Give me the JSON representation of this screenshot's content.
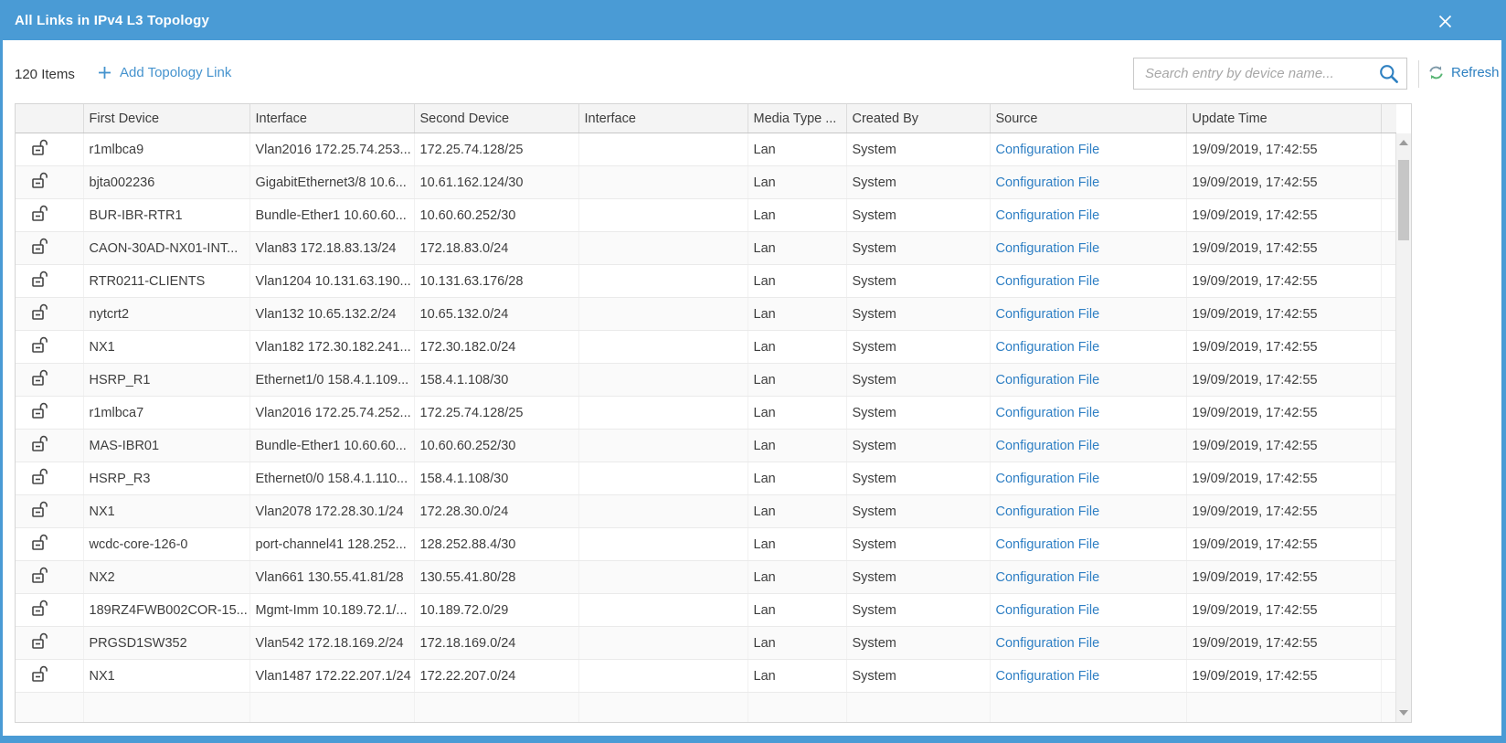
{
  "modal": {
    "title": "All Links in IPv4 L3 Topology"
  },
  "toolbar": {
    "items_count": "120 Items",
    "add_link_label": "Add Topology Link",
    "search_placeholder": "Search entry by device name...",
    "refresh_label": "Refresh"
  },
  "colors": {
    "titlebar_blue": "#4a9bd5",
    "link_blue": "#2e7fc4",
    "add_link_blue": "#4593ce",
    "refresh_green": "#58b574",
    "refresh_gray_blue": "#7e99a8"
  },
  "icons": {
    "close": "close-icon",
    "plus": "plus-icon",
    "search": "search-icon",
    "refresh": "refresh-icon",
    "row_lock": "unlock-icon"
  },
  "table": {
    "columns": [
      "",
      "First Device",
      "Interface",
      "Second Device",
      "Interface",
      "Media Type ...",
      "Created By",
      "Source",
      "Update Time",
      ""
    ],
    "rows": [
      {
        "first_device": "r1mlbca9",
        "interface1": "Vlan2016 172.25.74.253...",
        "second_device": "172.25.74.128/25",
        "interface2": "",
        "media_type": "Lan",
        "created_by": "System",
        "source": "Configuration File",
        "update_time": "19/09/2019, 17:42:55"
      },
      {
        "first_device": "bjta002236",
        "interface1": "GigabitEthernet3/8 10.6...",
        "second_device": "10.61.162.124/30",
        "interface2": "",
        "media_type": "Lan",
        "created_by": "System",
        "source": "Configuration File",
        "update_time": "19/09/2019, 17:42:55"
      },
      {
        "first_device": "BUR-IBR-RTR1",
        "interface1": "Bundle-Ether1 10.60.60...",
        "second_device": "10.60.60.252/30",
        "interface2": "",
        "media_type": "Lan",
        "created_by": "System",
        "source": "Configuration File",
        "update_time": "19/09/2019, 17:42:55"
      },
      {
        "first_device": "CAON-30AD-NX01-INT...",
        "interface1": "Vlan83 172.18.83.13/24",
        "second_device": "172.18.83.0/24",
        "interface2": "",
        "media_type": "Lan",
        "created_by": "System",
        "source": "Configuration File",
        "update_time": "19/09/2019, 17:42:55"
      },
      {
        "first_device": "RTR0211-CLIENTS",
        "interface1": "Vlan1204 10.131.63.190...",
        "second_device": "10.131.63.176/28",
        "interface2": "",
        "media_type": "Lan",
        "created_by": "System",
        "source": "Configuration File",
        "update_time": "19/09/2019, 17:42:55"
      },
      {
        "first_device": "nytcrt2",
        "interface1": "Vlan132 10.65.132.2/24",
        "second_device": "10.65.132.0/24",
        "interface2": "",
        "media_type": "Lan",
        "created_by": "System",
        "source": "Configuration File",
        "update_time": "19/09/2019, 17:42:55"
      },
      {
        "first_device": "NX1",
        "interface1": "Vlan182 172.30.182.241...",
        "second_device": "172.30.182.0/24",
        "interface2": "",
        "media_type": "Lan",
        "created_by": "System",
        "source": "Configuration File",
        "update_time": "19/09/2019, 17:42:55"
      },
      {
        "first_device": "HSRP_R1",
        "interface1": "Ethernet1/0 158.4.1.109...",
        "second_device": "158.4.1.108/30",
        "interface2": "",
        "media_type": "Lan",
        "created_by": "System",
        "source": "Configuration File",
        "update_time": "19/09/2019, 17:42:55"
      },
      {
        "first_device": "r1mlbca7",
        "interface1": "Vlan2016 172.25.74.252...",
        "second_device": "172.25.74.128/25",
        "interface2": "",
        "media_type": "Lan",
        "created_by": "System",
        "source": "Configuration File",
        "update_time": "19/09/2019, 17:42:55"
      },
      {
        "first_device": "MAS-IBR01",
        "interface1": "Bundle-Ether1 10.60.60...",
        "second_device": "10.60.60.252/30",
        "interface2": "",
        "media_type": "Lan",
        "created_by": "System",
        "source": "Configuration File",
        "update_time": "19/09/2019, 17:42:55"
      },
      {
        "first_device": "HSRP_R3",
        "interface1": "Ethernet0/0 158.4.1.110...",
        "second_device": "158.4.1.108/30",
        "interface2": "",
        "media_type": "Lan",
        "created_by": "System",
        "source": "Configuration File",
        "update_time": "19/09/2019, 17:42:55"
      },
      {
        "first_device": "NX1",
        "interface1": "Vlan2078 172.28.30.1/24",
        "second_device": "172.28.30.0/24",
        "interface2": "",
        "media_type": "Lan",
        "created_by": "System",
        "source": "Configuration File",
        "update_time": "19/09/2019, 17:42:55"
      },
      {
        "first_device": "wcdc-core-126-0",
        "interface1": "port-channel41 128.252...",
        "second_device": "128.252.88.4/30",
        "interface2": "",
        "media_type": "Lan",
        "created_by": "System",
        "source": "Configuration File",
        "update_time": "19/09/2019, 17:42:55"
      },
      {
        "first_device": "NX2",
        "interface1": "Vlan661 130.55.41.81/28",
        "second_device": "130.55.41.80/28",
        "interface2": "",
        "media_type": "Lan",
        "created_by": "System",
        "source": "Configuration File",
        "update_time": "19/09/2019, 17:42:55"
      },
      {
        "first_device": "189RZ4FWB002COR-15...",
        "interface1": "Mgmt-Imm 10.189.72.1/...",
        "second_device": "10.189.72.0/29",
        "interface2": "",
        "media_type": "Lan",
        "created_by": "System",
        "source": "Configuration File",
        "update_time": "19/09/2019, 17:42:55"
      },
      {
        "first_device": "PRGSD1SW352",
        "interface1": "Vlan542 172.18.169.2/24",
        "second_device": "172.18.169.0/24",
        "interface2": "",
        "media_type": "Lan",
        "created_by": "System",
        "source": "Configuration File",
        "update_time": "19/09/2019, 17:42:55"
      },
      {
        "first_device": "NX1",
        "interface1": "Vlan1487 172.22.207.1/24",
        "second_device": "172.22.207.0/24",
        "interface2": "",
        "media_type": "Lan",
        "created_by": "System",
        "source": "Configuration File",
        "update_time": "19/09/2019, 17:42:55"
      }
    ]
  }
}
